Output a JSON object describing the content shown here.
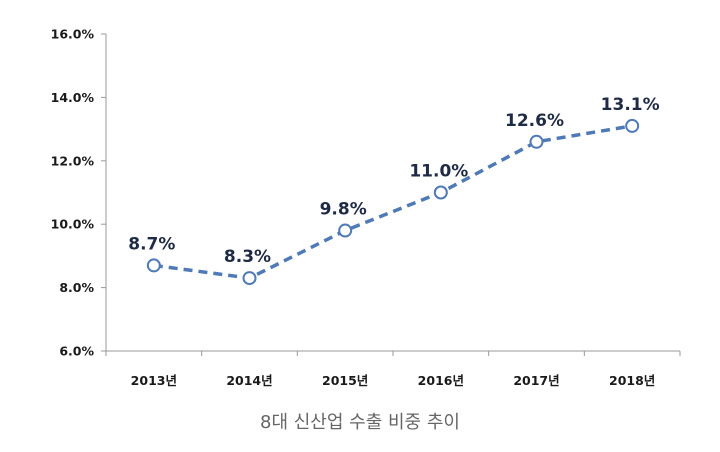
{
  "caption": "8대 신산업 수출 비중 추이",
  "colors": {
    "series_line": "#4f7ab5",
    "marker_stroke": "#4f7ab5",
    "marker_fill": "#ffffff",
    "axis": "#999999",
    "label": "#1f2a44"
  },
  "chart_data": {
    "type": "line",
    "title": "",
    "xlabel": "",
    "ylabel": "",
    "categories": [
      "2013년",
      "2014년",
      "2015년",
      "2016년",
      "2017년",
      "2018년"
    ],
    "series": [
      {
        "values": [
          8.7,
          8.3,
          9.8,
          11.0,
          12.6,
          13.1
        ],
        "data_labels": [
          "8.7%",
          "8.3%",
          "9.8%",
          "11.0%",
          "12.6%",
          "13.1%"
        ]
      }
    ],
    "ylim": [
      6.0,
      16.0
    ],
    "yticks": [
      6.0,
      8.0,
      10.0,
      12.0,
      14.0,
      16.0
    ],
    "ytick_labels": [
      "6.0%",
      "8.0%",
      "10.0%",
      "12.0%",
      "14.0%",
      "16.0%"
    ],
    "grid": false,
    "line_style": "dashed",
    "marker": "hollow-circle"
  }
}
